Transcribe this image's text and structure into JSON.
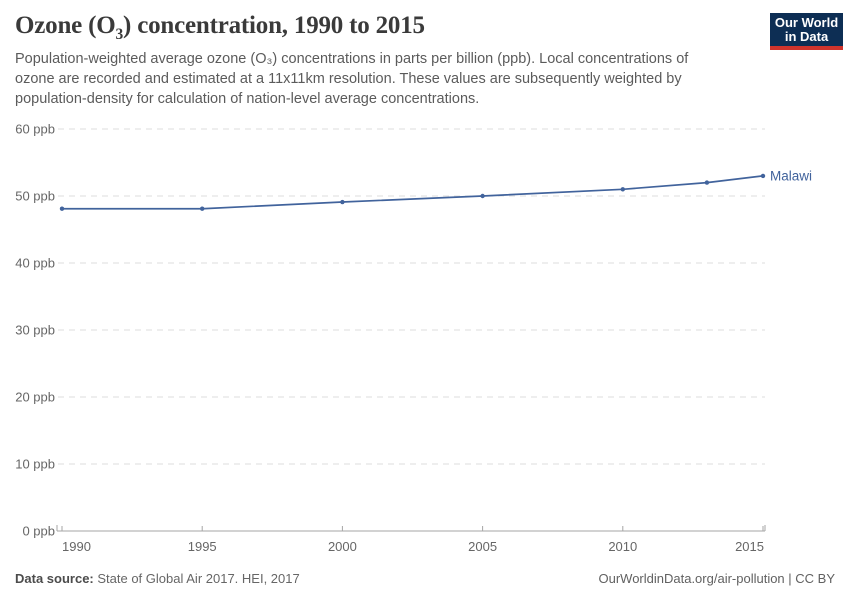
{
  "header": {
    "title_prefix": "Ozone (O",
    "title_sub": "3",
    "title_suffix": ") concentration, 1990 to 2015",
    "subtitle": "Population-weighted average ozone (O₃) concentrations in parts per billion (ppb). Local concentrations of ozone are recorded and estimated at a 11x11km resolution. These values are subsequently weighted by population-density for calculation of nation-level average concentrations.",
    "logo": {
      "line1": "Our World",
      "line2": "in Data"
    }
  },
  "chart_data": {
    "type": "line",
    "title": "Ozone (O₃) concentration, 1990 to 2015",
    "x": [
      1990,
      1995,
      2000,
      2005,
      2010,
      2013,
      2015
    ],
    "series": [
      {
        "name": "Malawi",
        "color": "#41639C",
        "values": [
          48.1,
          48.1,
          49.1,
          50.0,
          51.0,
          52.0,
          53.0
        ]
      }
    ],
    "xlabel": "",
    "ylabel": "",
    "xlim": [
      1990,
      2015
    ],
    "ylim": [
      0,
      60
    ],
    "yticks": [
      0,
      10,
      20,
      30,
      40,
      50,
      60
    ],
    "ytick_suffix": " ppb",
    "xticks": [
      1990,
      1995,
      2000,
      2005,
      2010,
      2015
    ],
    "grid": "dashed-horizontal",
    "legend_position": "end-of-line"
  },
  "footer": {
    "source_label": "Data source:",
    "source_text": " State of Global Air 2017. HEI, 2017",
    "attribution": "OurWorldinData.org/air-pollution | CC BY"
  },
  "colors": {
    "line": "#41639C",
    "logo_bg": "#0D2E54",
    "logo_red": "#D0342C",
    "grid": "#dedede",
    "axis": "#a5a5a5",
    "axis_text": "#666666"
  }
}
